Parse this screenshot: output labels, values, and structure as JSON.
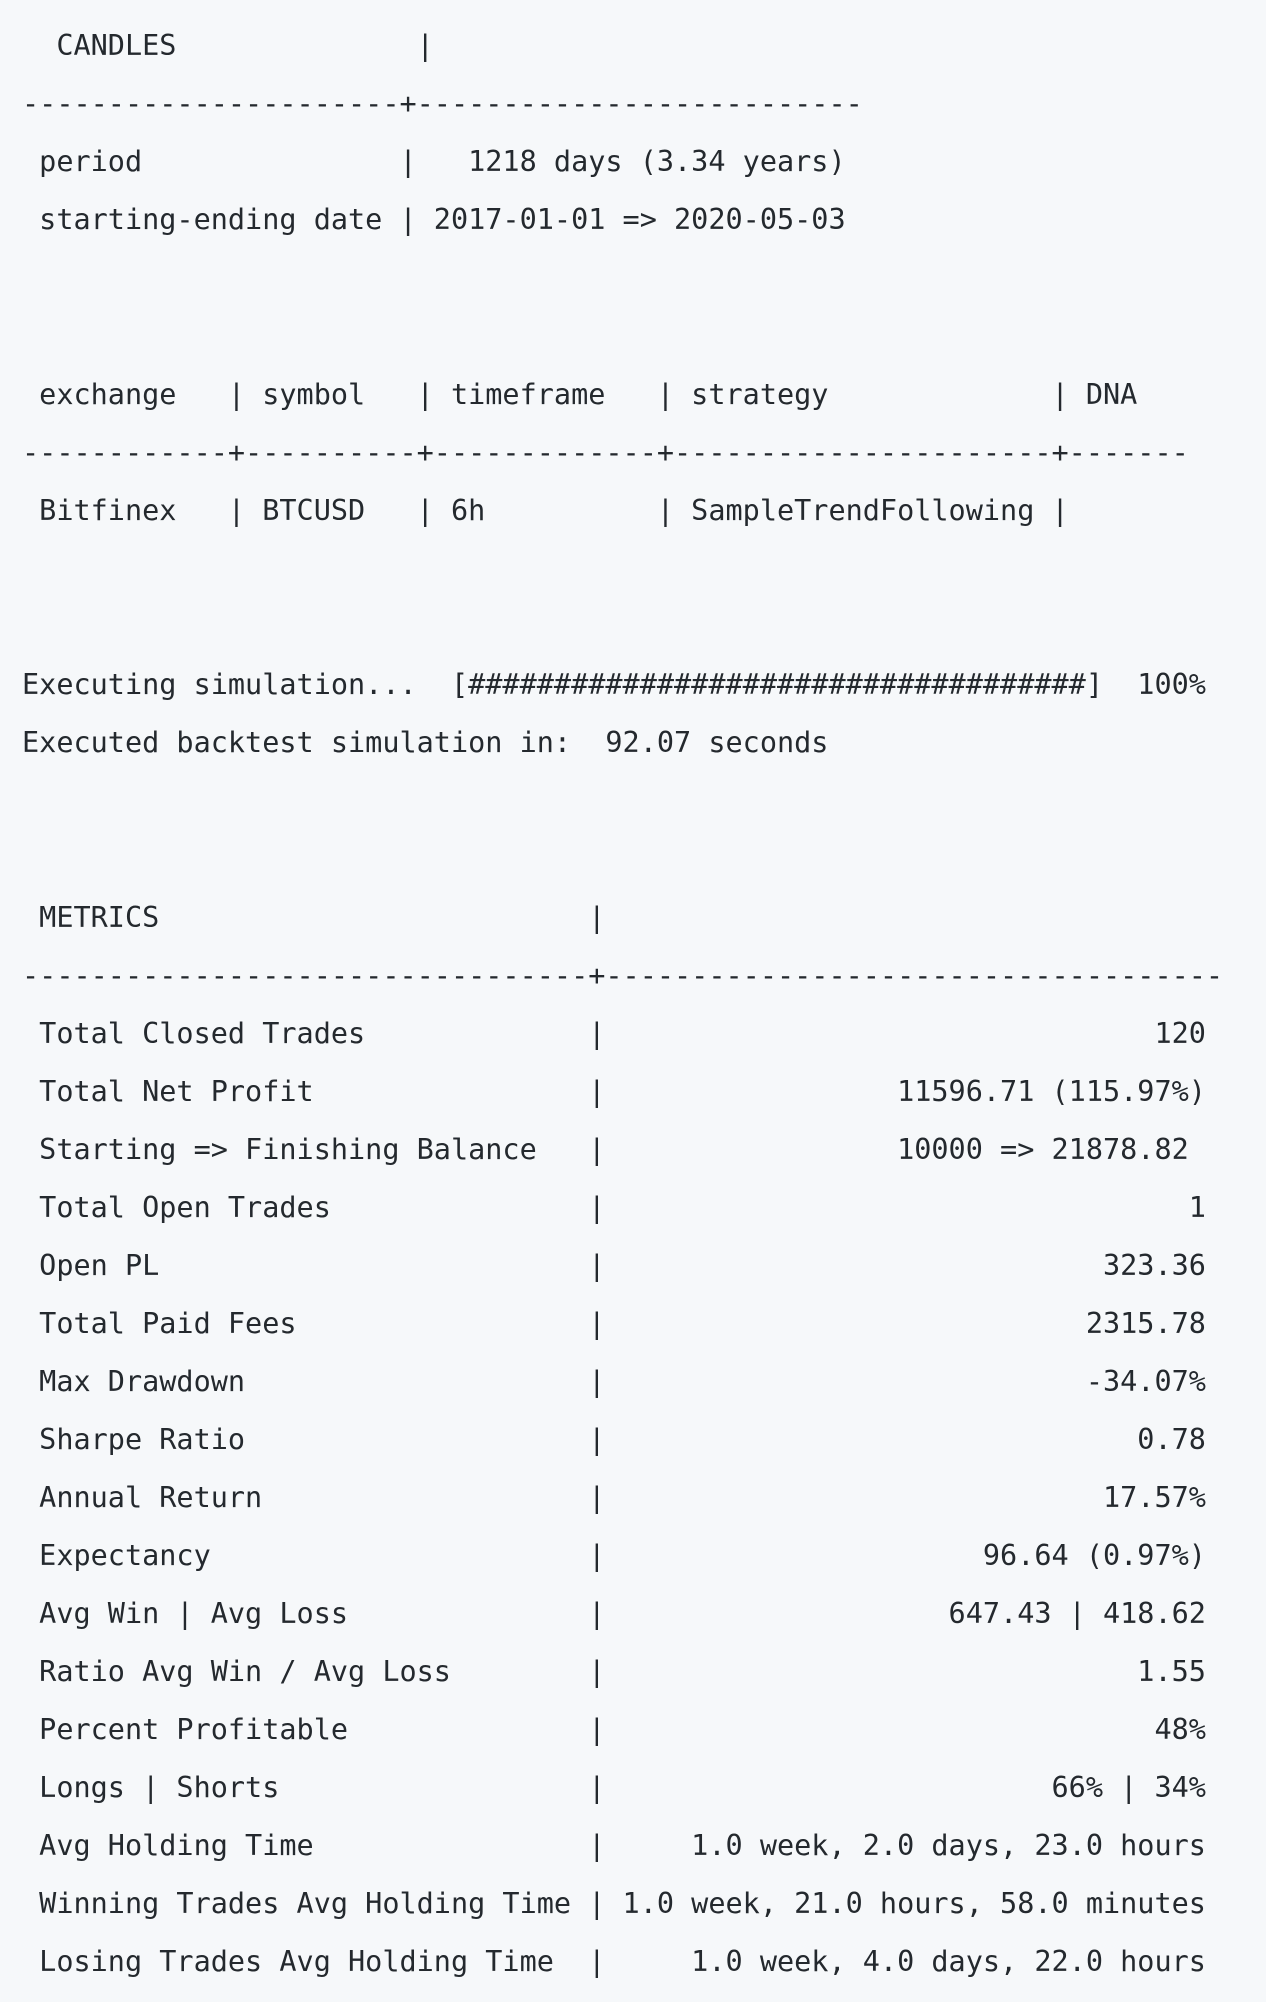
{
  "terminal": {
    "candles_section": {
      "header": "  CANDLES              |",
      "separator": "----------------------+--------------------------",
      "rows": [
        " period               |   1218 days (3.34 years)",
        " starting-ending date | 2017-01-01 => 2020-05-03"
      ]
    },
    "routes_section": {
      "header": " exchange   | symbol   | timeframe   | strategy             | DNA",
      "separator": "------------+----------+-------------+----------------------+-------",
      "rows": [
        " Bitfinex   | BTCUSD   | 6h          | SampleTrendFollowing |"
      ]
    },
    "progress": {
      "line": "Executing simulation...  [####################################]  100%",
      "percent": 100
    },
    "execution_time": "Executed backtest simulation in:  92.07 seconds",
    "metrics_section": {
      "header": " METRICS                         |",
      "separator": "---------------------------------+------------------------------------",
      "rows": [
        " Total Closed Trades             |                                120",
        " Total Net Profit                |                 11596.71 (115.97%)",
        " Starting => Finishing Balance   |                 10000 => 21878.82",
        " Total Open Trades               |                                  1",
        " Open PL                         |                             323.36",
        " Total Paid Fees                 |                            2315.78",
        " Max Drawdown                    |                            -34.07%",
        " Sharpe Ratio                    |                               0.78",
        " Annual Return                   |                             17.57%",
        " Expectancy                      |                      96.64 (0.97%)",
        " Avg Win | Avg Loss              |                    647.43 | 418.62",
        " Ratio Avg Win / Avg Loss        |                               1.55",
        " Percent Profitable              |                                48%",
        " Longs | Shorts                  |                          66% | 34%",
        " Avg Holding Time                |     1.0 week, 2.0 days, 23.0 hours",
        " Winning Trades Avg Holding Time | 1.0 week, 21.0 hours, 58.0 minutes",
        " Losing Trades Avg Holding Time  |     1.0 week, 4.0 days, 22.0 hours"
      ]
    }
  }
}
